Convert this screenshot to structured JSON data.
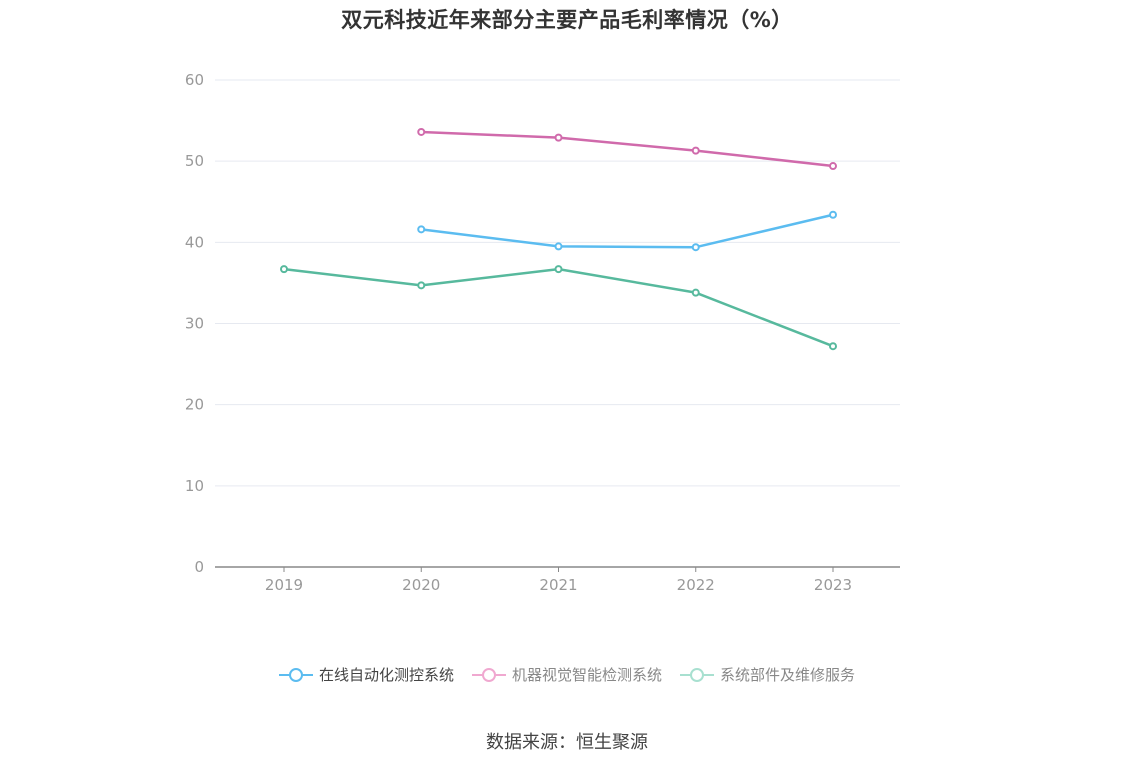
{
  "chart_data": {
    "type": "line",
    "title": "双元科技近年来部分主要产品毛利率情况（%）",
    "categories": [
      "2019",
      "2020",
      "2021",
      "2022",
      "2023"
    ],
    "y_ticks": [
      "0",
      "10",
      "20",
      "30",
      "40",
      "50",
      "60"
    ],
    "ylim": [
      0,
      60
    ],
    "grid": true,
    "legend_position": "bottom",
    "series": [
      {
        "name": "在线自动化测控系统",
        "color": "#5bbcf0",
        "values": [
          null,
          41.6,
          39.5,
          39.4,
          43.4
        ]
      },
      {
        "name": "机器视觉智能检测系统",
        "color": "#d06aab",
        "values": [
          null,
          53.6,
          52.9,
          51.3,
          49.4
        ]
      },
      {
        "name": "系统部件及维修服务",
        "color": "#57b99d",
        "values": [
          36.7,
          34.7,
          36.7,
          33.8,
          27.2
        ]
      }
    ],
    "legend_colors": [
      "#5bbcf0",
      "#f0a8d0",
      "#a8e0d0"
    ]
  },
  "source": "数据来源：恒生聚源"
}
